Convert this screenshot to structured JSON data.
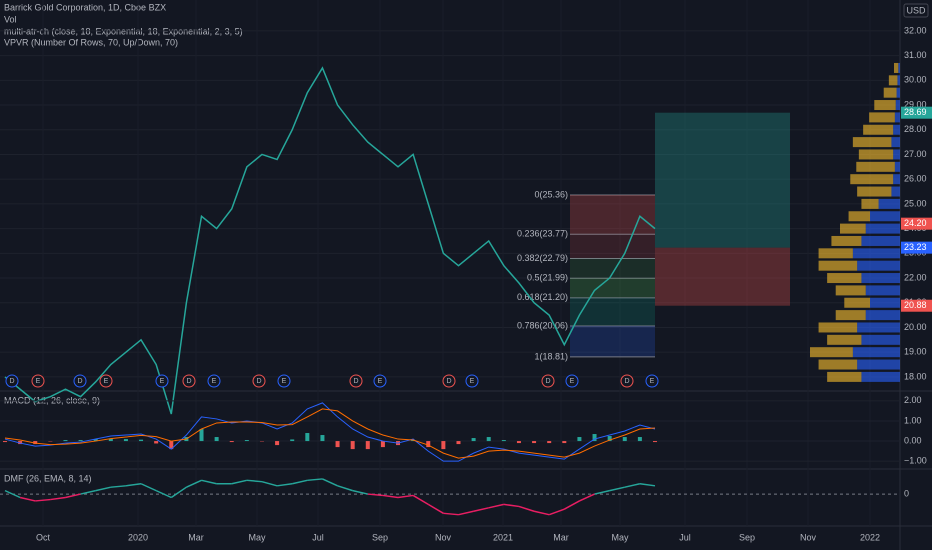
{
  "header": {
    "title": "Barrick Gold Corporation, 1D, Cboe BZX",
    "vol": "Vol",
    "indicator_1": "multi-atr-ch (close, 18, Exponential, 18, Exponential, 2, 3, 5)",
    "indicator_2": "VPVR (Number Of Rows, 70, Up/Down, 70)"
  },
  "currency": "USD",
  "price_axis": {
    "ylim": [
      17.47,
      33.25
    ],
    "ticks": [
      {
        "value": 32,
        "label": "32.00"
      },
      {
        "value": 31,
        "label": "31.00"
      },
      {
        "value": 30,
        "label": "30.00"
      },
      {
        "value": 29,
        "label": "29.00"
      },
      {
        "value": 28,
        "label": "28.00"
      },
      {
        "value": 27,
        "label": "27.00"
      },
      {
        "value": 26,
        "label": "26.00"
      },
      {
        "value": 25,
        "label": "25.00"
      },
      {
        "value": 24,
        "label": "24.00"
      },
      {
        "value": 23,
        "label": "23.00"
      },
      {
        "value": 22,
        "label": "22.00"
      },
      {
        "value": 21,
        "label": "21.00"
      },
      {
        "value": 20,
        "label": "20.00"
      },
      {
        "value": 19,
        "label": "19.00"
      },
      {
        "value": 18,
        "label": "18.00"
      }
    ]
  },
  "price_labels": [
    {
      "value": 28.69,
      "color": "#26a69a"
    },
    {
      "value": {
        "value": 24.2,
        "label": "24.20"
      },
      "color": "#ef5350"
    },
    {
      "value": 23.23,
      "color": "#2962ff"
    },
    {
      "value": 20.88,
      "color": "#ef5350"
    }
  ],
  "close": [
    18.0,
    17.5,
    17.0,
    17.2,
    17.5,
    17.2,
    17.8,
    18.5,
    19.0,
    19.5,
    18.5,
    16.5,
    21.0,
    24.5,
    24.0,
    24.8,
    26.5,
    27.0,
    26.8,
    28.0,
    29.5,
    30.5,
    29.0,
    28.2,
    27.5,
    27.0,
    26.5,
    27.0,
    25.0,
    23.0,
    22.5,
    23.0,
    23.5,
    22.5,
    21.8,
    21.0,
    20.5,
    19.3,
    20.5,
    21.5,
    22.0,
    23.0,
    24.5,
    24.0
  ],
  "fib": [
    {
      "label": "0(25.36)",
      "price": 25.36
    },
    {
      "label": "0.236(23.77)",
      "price": 23.77
    },
    {
      "label": "0.382(22.79)",
      "price": 22.79
    },
    {
      "label": "0.5(21.99)",
      "price": 21.99
    },
    {
      "label": "0.618(21.20)",
      "price": 21.2
    },
    {
      "label": "0.786(20.06)",
      "price": 20.06
    },
    {
      "label": "1(18.81)",
      "price": 18.81
    }
  ],
  "vpvr": {
    "row_prices": [
      18,
      18.5,
      19,
      19.5,
      20,
      20.5,
      21,
      21.5,
      22,
      22.5,
      23,
      23.5,
      24,
      24.5,
      25,
      25.5,
      26,
      26.5,
      27,
      27.5,
      28,
      28.5,
      29,
      29.5,
      30,
      30.5
    ],
    "up": [
      45,
      50,
      55,
      45,
      50,
      40,
      35,
      40,
      45,
      50,
      55,
      45,
      40,
      35,
      25,
      10,
      8,
      6,
      8,
      10,
      8,
      6,
      5,
      4,
      3,
      2
    ],
    "down": [
      40,
      45,
      50,
      40,
      45,
      35,
      30,
      35,
      40,
      45,
      40,
      35,
      30,
      25,
      20,
      40,
      50,
      45,
      40,
      45,
      35,
      30,
      25,
      15,
      10,
      5
    ]
  },
  "events": [
    "D",
    "E",
    "D",
    "E",
    "E",
    "D",
    "E",
    "D",
    "E",
    "D",
    "E",
    "D",
    "E",
    "D",
    "E",
    "D",
    "E"
  ],
  "macd": {
    "label": "MACD (12, 26, close, 9)",
    "ylim": [
      -1.34,
      2.44
    ],
    "ticks": [
      {
        "value": 2,
        "label": "2.00"
      },
      {
        "value": 1,
        "label": "1.00"
      },
      {
        "value": 0,
        "label": "0.00"
      },
      {
        "value": -1,
        "label": "−1.00"
      }
    ],
    "macd": [
      0.1,
      -0.1,
      -0.25,
      -0.2,
      -0.1,
      -0.05,
      0.1,
      0.25,
      0.3,
      0.35,
      0.1,
      -0.4,
      0.3,
      1.2,
      1.1,
      0.9,
      1.0,
      0.9,
      0.6,
      0.9,
      1.6,
      1.9,
      1.2,
      0.6,
      0.2,
      0,
      -0.1,
      0.1,
      -0.5,
      -1.0,
      -1.0,
      -0.6,
      -0.3,
      -0.4,
      -0.6,
      -0.7,
      -0.8,
      -0.9,
      -0.4,
      0.1,
      0.3,
      0.5,
      0.8,
      0.6
    ],
    "signal": [
      0.15,
      0.05,
      -0.1,
      -0.18,
      -0.15,
      -0.1,
      0,
      0.12,
      0.2,
      0.28,
      0.22,
      0,
      0.1,
      0.6,
      0.9,
      0.95,
      0.95,
      0.92,
      0.8,
      0.82,
      1.2,
      1.6,
      1.5,
      1.0,
      0.6,
      0.3,
      0.1,
      0.05,
      -0.2,
      -0.6,
      -0.85,
      -0.75,
      -0.5,
      -0.45,
      -0.5,
      -0.6,
      -0.7,
      -0.8,
      -0.6,
      -0.25,
      0.05,
      0.3,
      0.6,
      0.65
    ]
  },
  "dmf": {
    "label": "DMF (26, EMA, 8, 14)",
    "ylim": [
      -0.45,
      0.35
    ],
    "ticks": [
      0
    ],
    "values": [
      0.05,
      -0.05,
      -0.1,
      -0.08,
      -0.05,
      0,
      0.05,
      0.1,
      0.12,
      0.15,
      0.05,
      -0.05,
      0.1,
      0.2,
      0.15,
      0.15,
      0.2,
      0.18,
      0.12,
      0.15,
      0.2,
      0.22,
      0.12,
      0.05,
      0,
      -0.02,
      -0.05,
      -0.02,
      -0.15,
      -0.28,
      -0.3,
      -0.25,
      -0.2,
      -0.15,
      -0.18,
      -0.25,
      -0.3,
      -0.22,
      -0.1,
      0,
      0.05,
      0.1,
      0.15,
      0.12
    ]
  },
  "x_axis": [
    "Oct",
    "2020",
    "Mar",
    "May",
    "Jul",
    "Sep",
    "Nov",
    "2021",
    "Mar",
    "May",
    "Jul",
    "Sep",
    "Nov",
    "2022"
  ]
}
